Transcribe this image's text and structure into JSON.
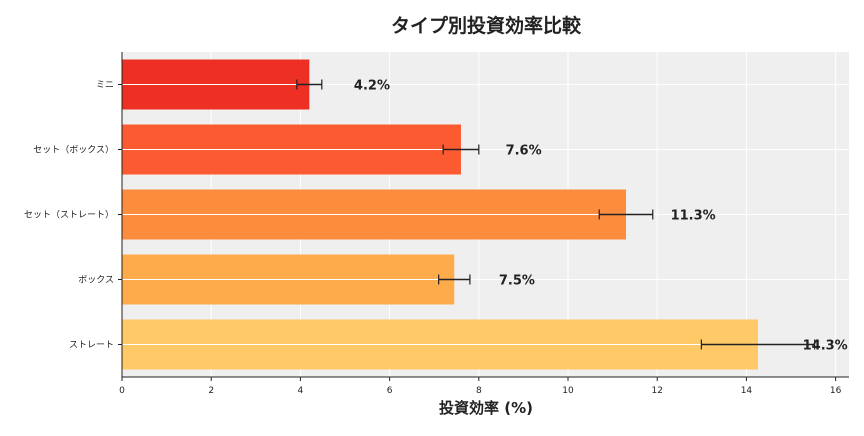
{
  "chart_data": {
    "type": "bar",
    "orientation": "horizontal",
    "title": "タイプ別投資効率比較",
    "xlabel": "投資効率 (%)",
    "ylabel": "",
    "xlim": [
      0,
      16.3
    ],
    "xticks": [
      0,
      2,
      4,
      6,
      8,
      10,
      12,
      14,
      16
    ],
    "grid": true,
    "categories": [
      "ミニ",
      "セット（ボックス）",
      "セット（ストレート）",
      "ボックス",
      "ストレート"
    ],
    "values": [
      4.2,
      7.6,
      11.3,
      7.45,
      14.26
    ],
    "errors": [
      0.28,
      0.4,
      0.6,
      0.35,
      1.27
    ],
    "data_labels": [
      "4.2%",
      "7.6%",
      "11.3%",
      "7.5%",
      "14.3%"
    ],
    "colors": [
      "#ee3024",
      "#fc5a30",
      "#fd8c3c",
      "#feab4b",
      "#fec966"
    ],
    "background": "#efefef"
  }
}
